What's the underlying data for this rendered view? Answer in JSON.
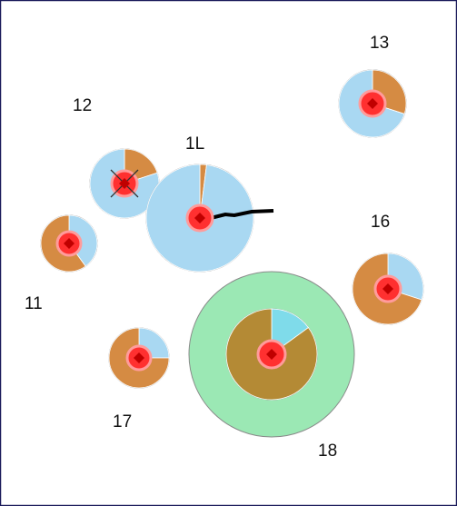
{
  "colors": {
    "frame": "#1a1a5a",
    "pie_light_blue": "#a9d8f2",
    "pie_orange": "#d58b43",
    "pie_brown": "#b48a35",
    "pie_cyan": "#7fdbea",
    "outer_green": "#9be8b4",
    "core_red": "#ff3030",
    "core_ring": "#ff9b9b",
    "center_mark": "#c00000",
    "stroke": "#8a8a8a",
    "pointer": "#000000"
  },
  "nodes": [
    {
      "id": "n13",
      "label": "13",
      "pie": [
        {
          "frac": 0.3,
          "color": "#d58b43"
        },
        {
          "frac": 0.7,
          "color": "#a9d8f2"
        }
      ],
      "core": "plain"
    },
    {
      "id": "n12",
      "label": "12",
      "pie": [
        {
          "frac": 0.2,
          "color": "#d58b43"
        },
        {
          "frac": 0.8,
          "color": "#a9d8f2"
        }
      ],
      "core": "crossed"
    },
    {
      "id": "n1L",
      "label": "1L",
      "pie": [
        {
          "frac": 0.02,
          "color": "#d58b43"
        },
        {
          "frac": 0.98,
          "color": "#a9d8f2"
        }
      ],
      "core": "plain",
      "pointer": true
    },
    {
      "id": "n16",
      "label": "16",
      "pie": [
        {
          "frac": 0.3,
          "color": "#a9d8f2"
        },
        {
          "frac": 0.7,
          "color": "#d58b43"
        }
      ],
      "core": "plain"
    },
    {
      "id": "n11",
      "label": "11",
      "pie": [
        {
          "frac": 0.4,
          "color": "#a9d8f2"
        },
        {
          "frac": 0.6,
          "color": "#d58b43"
        }
      ],
      "core": "plain"
    },
    {
      "id": "n17",
      "label": "17",
      "pie": [
        {
          "frac": 0.25,
          "color": "#a9d8f2"
        },
        {
          "frac": 0.75,
          "color": "#d58b43"
        }
      ],
      "core": "plain"
    },
    {
      "id": "n18",
      "label": "18",
      "pie": [
        {
          "frac": 0.15,
          "color": "#7fdbea"
        },
        {
          "frac": 0.85,
          "color": "#b48a35"
        }
      ],
      "core": "plain",
      "outer": "#9be8b4"
    }
  ]
}
